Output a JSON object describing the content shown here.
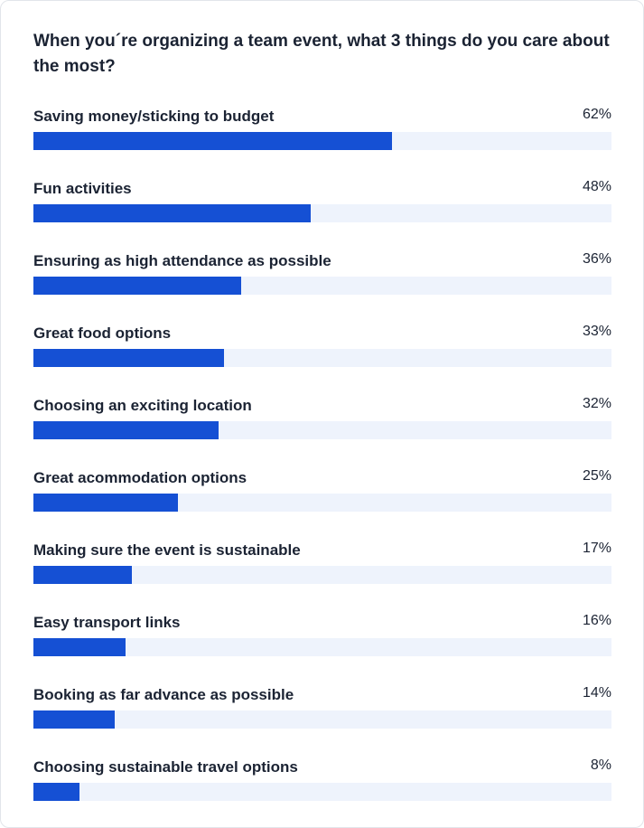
{
  "chart_data": {
    "type": "bar",
    "orientation": "horizontal",
    "title": "When you´re organizing a team event, what 3 things do you care about the most?",
    "unit": "%",
    "xlim": [
      0,
      100
    ],
    "categories": [
      "Saving money/sticking to budget",
      "Fun activities",
      "Ensuring as high attendance as possible",
      "Great food options",
      "Choosing an exciting location",
      "Great acommodation options",
      "Making sure the event is sustainable",
      "Easy transport links",
      "Booking as far advance as possible",
      "Choosing sustainable travel options"
    ],
    "values": [
      62,
      48,
      36,
      33,
      32,
      25,
      17,
      16,
      14,
      8
    ],
    "value_labels": [
      "62%",
      "48%",
      "36%",
      "33%",
      "32%",
      "25%",
      "17%",
      "16%",
      "14%",
      "8%"
    ],
    "colors": {
      "bar": "#1550d4",
      "track": "#eef3fc",
      "text": "#1b2333"
    }
  }
}
